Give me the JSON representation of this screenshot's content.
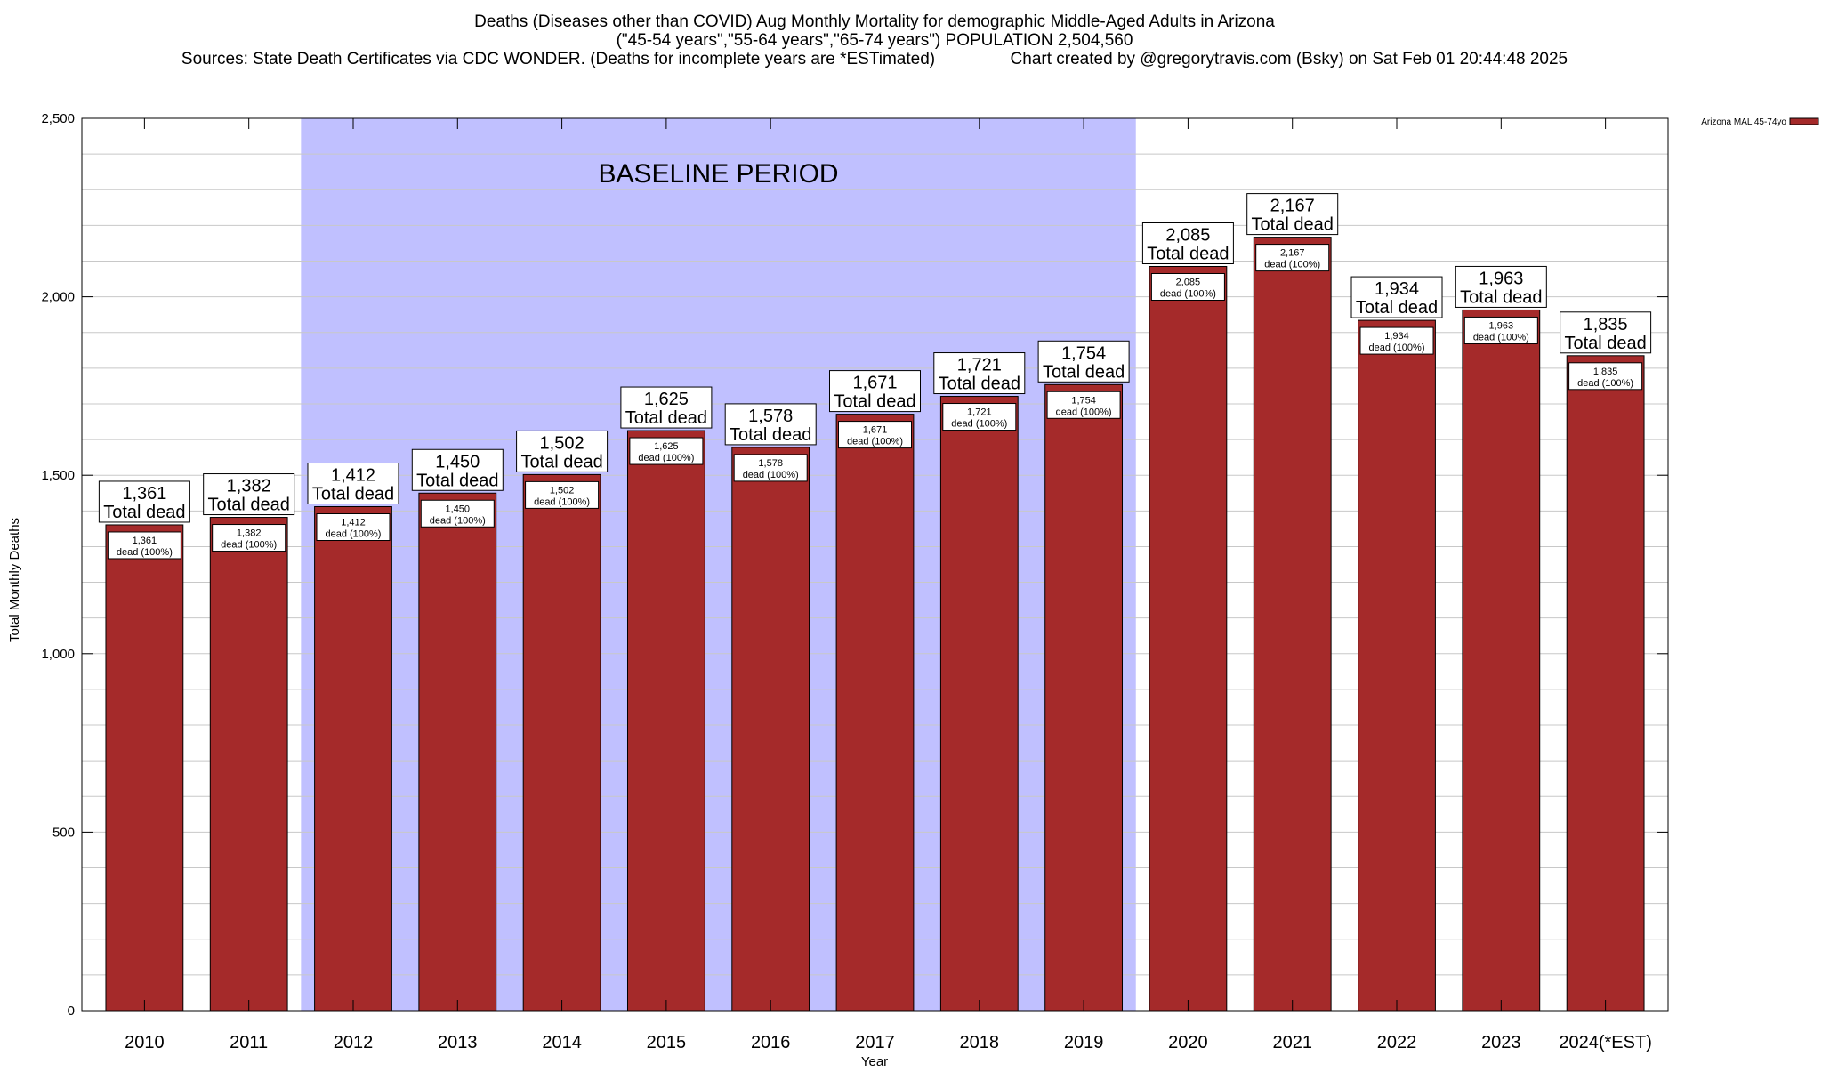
{
  "chart_data": {
    "type": "bar",
    "title_lines": [
      "Deaths (Diseases other than COVID) Aug Monthly Mortality for demographic Middle-Aged Adults in Arizona",
      "(\"45-54 years\",\"55-64 years\",\"65-74 years\") POPULATION 2,504,560",
      "Sources: State Death Certificates via CDC WONDER. (Deaths for incomplete years are *ESTimated)                Chart created by @gregorytravis.com (Bsky) on Sat Feb 01 20:44:48 2025"
    ],
    "xlabel": "Year",
    "ylabel": "Total Monthly Deaths",
    "ylim": [
      0,
      2500
    ],
    "yticks": [
      {
        "value": 0,
        "label": "0"
      },
      {
        "value": 500,
        "label": "500"
      },
      {
        "value": 1000,
        "label": "1,000"
      },
      {
        "value": 1500,
        "label": "1,500"
      },
      {
        "value": 2000,
        "label": "2,000"
      },
      {
        "value": 2500,
        "label": "2,500"
      }
    ],
    "minor_gridlines": [
      100,
      200,
      300,
      400,
      500,
      600,
      700,
      800,
      900,
      1000,
      1100,
      1200,
      1300,
      1400,
      1500,
      1600,
      1700,
      1800,
      1900,
      2000,
      2100,
      2200,
      2300,
      2400
    ],
    "grid": true,
    "categories": [
      "2010",
      "2011",
      "2012",
      "2013",
      "2014",
      "2015",
      "2016",
      "2017",
      "2018",
      "2019",
      "2020",
      "2021",
      "2022",
      "2023",
      "2024(*EST)"
    ],
    "series": [
      {
        "name": "Arizona MAL 45-74yo",
        "color": "#a52a2a",
        "values": [
          1361,
          1382,
          1412,
          1450,
          1502,
          1625,
          1578,
          1671,
          1721,
          1754,
          2085,
          2167,
          1934,
          1963,
          1835
        ],
        "value_labels": [
          "1,361",
          "1,382",
          "1,412",
          "1,450",
          "1,502",
          "1,625",
          "1,578",
          "1,671",
          "1,721",
          "1,754",
          "2,085",
          "2,167",
          "1,934",
          "1,963",
          "1,835"
        ]
      }
    ],
    "total_label_suffix": "Total dead",
    "inner_label_suffix": "dead (100%)",
    "baseline": {
      "label": "BASELINE PERIOD",
      "start_category": "2012",
      "end_category": "2019",
      "color": "#c0c0ff"
    },
    "legend": {
      "placement": "top-right",
      "entries": [
        "Arizona MAL 45-74yo"
      ]
    }
  }
}
